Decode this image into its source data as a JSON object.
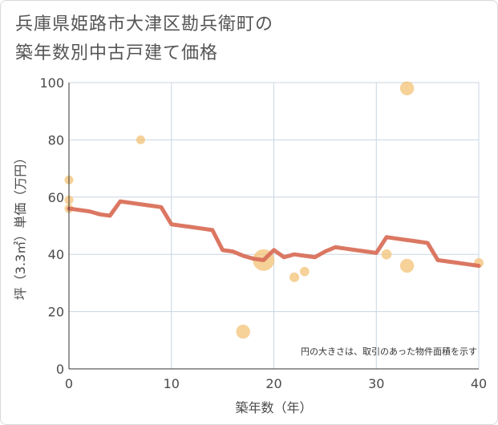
{
  "title_lines": [
    "兵庫県姫路市大津区勘兵衛町の",
    "築年数別中古戸建て価格"
  ],
  "chart_data": {
    "type": "scatter",
    "title": "兵庫県姫路市大津区勘兵衛町の築年数別中古戸建て価格",
    "xlabel": "築年数（年）",
    "ylabel": "坪（3.3㎡）単価（万円）",
    "xlim": [
      0,
      40
    ],
    "ylim": [
      0,
      100
    ],
    "xticks": [
      0,
      10,
      20,
      30,
      40
    ],
    "yticks": [
      0,
      20,
      40,
      60,
      80,
      100
    ],
    "grid": true,
    "note": "円の大きさは、取引のあった物件面積を示す",
    "colors": {
      "bubble": "#f3c276",
      "line": "#d9705a",
      "grid": "#c9d6e0",
      "axis": "#333333"
    },
    "bubbles": [
      {
        "x": 0,
        "y": 66,
        "size": 1
      },
      {
        "x": 0,
        "y": 59,
        "size": 1
      },
      {
        "x": 0,
        "y": 56,
        "size": 1
      },
      {
        "x": 7,
        "y": 80,
        "size": 1
      },
      {
        "x": 17,
        "y": 13,
        "size": 2.5
      },
      {
        "x": 19,
        "y": 38,
        "size": 6
      },
      {
        "x": 22,
        "y": 32,
        "size": 1.2
      },
      {
        "x": 23,
        "y": 34,
        "size": 1.1
      },
      {
        "x": 31,
        "y": 40,
        "size": 1.3
      },
      {
        "x": 33,
        "y": 98,
        "size": 2.5
      },
      {
        "x": 33,
        "y": 36,
        "size": 2.5
      },
      {
        "x": 40,
        "y": 37,
        "size": 1.2
      }
    ],
    "trend": {
      "x": [
        0,
        2,
        3,
        4,
        5,
        6,
        7,
        8,
        9,
        10,
        11,
        12,
        13,
        14,
        15,
        16,
        17,
        18,
        19,
        20,
        21,
        22,
        23,
        24,
        25,
        26,
        27,
        28,
        29,
        30,
        31,
        32,
        33,
        34,
        35,
        36,
        37,
        38,
        39,
        40
      ],
      "y": [
        56,
        55,
        54,
        53.5,
        58.5,
        58,
        57.5,
        57,
        56.5,
        50.5,
        50,
        49.5,
        49,
        48.5,
        41.5,
        41,
        39.5,
        38.5,
        38,
        41.5,
        39,
        40,
        39.5,
        39,
        41,
        42.5,
        42,
        41.5,
        41,
        40.5,
        46,
        45.5,
        45,
        44.5,
        44,
        38,
        37.5,
        37,
        36.5,
        36
      ]
    }
  }
}
